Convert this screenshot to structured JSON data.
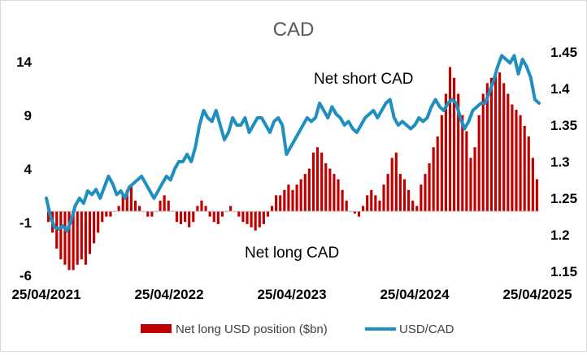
{
  "chart_data": {
    "type": "bar+line",
    "title": "CAD",
    "x_ticks": [
      "25/04/2021",
      "25/04/2022",
      "25/04/2023",
      "25/04/2024",
      "25/04/2025"
    ],
    "y_left": {
      "ticks": [
        "14",
        "9",
        "4",
        "-1",
        "-6"
      ],
      "range": [
        -6,
        14
      ]
    },
    "y_right": {
      "ticks": [
        "1.45",
        "1.4",
        "1.35",
        "1.3",
        "1.25",
        "1.2",
        "1.15"
      ],
      "range": [
        1.15,
        1.45
      ]
    },
    "annotations": [
      "Net short CAD",
      "Net long CAD"
    ],
    "legend": [
      "Net long USD position ($bn)",
      "USD/CAD"
    ],
    "colors": {
      "bars": "#c00000",
      "line": "#1f8fbf"
    },
    "series": [
      {
        "name": "Net long USD position ($bn)",
        "axis": "left",
        "type": "bar",
        "values": [
          -1,
          -2,
          -3.5,
          -4.5,
          -5,
          -5.5,
          -5.5,
          -5,
          -4.5,
          -5,
          -4,
          -3,
          -2,
          -1,
          -0.5,
          -0.5,
          0,
          0.5,
          1.5,
          2,
          2.5,
          1,
          0.5,
          0,
          -0.5,
          -0.5,
          0,
          1,
          1.5,
          1,
          0,
          -1,
          -1.2,
          -1,
          -1.5,
          -1,
          0.5,
          1,
          0.5,
          -0.5,
          -1,
          -1.2,
          -0.5,
          0,
          0.5,
          0,
          -0.5,
          -1,
          -1.2,
          -1.5,
          -1.8,
          -1.5,
          -1.2,
          -0.5,
          0.5,
          1.5,
          1.5,
          2,
          2.5,
          2,
          2.5,
          3,
          3.5,
          4,
          5.5,
          6,
          5.5,
          4.5,
          4,
          3.5,
          3,
          2,
          1,
          0,
          -0.2,
          -0.5,
          0.5,
          1.5,
          2,
          1.5,
          1,
          2.5,
          3.5,
          5,
          5.5,
          3.5,
          3,
          2,
          1,
          0.5,
          2.5,
          3.5,
          4.5,
          6,
          7,
          9,
          11,
          13.5,
          12.5,
          11,
          9,
          7.5,
          5,
          6,
          9,
          11,
          12,
          12.5,
          13,
          13,
          12,
          11,
          10,
          9.5,
          9,
          8,
          7,
          5,
          3
        ]
      },
      {
        "name": "USD/CAD",
        "axis": "right",
        "type": "line",
        "values": [
          1.25,
          1.225,
          1.21,
          1.208,
          1.212,
          1.205,
          1.22,
          1.24,
          1.25,
          1.243,
          1.26,
          1.255,
          1.262,
          1.25,
          1.265,
          1.28,
          1.27,
          1.255,
          1.26,
          1.25,
          1.265,
          1.27,
          1.275,
          1.28,
          1.27,
          1.26,
          1.25,
          1.26,
          1.27,
          1.28,
          1.275,
          1.29,
          1.3,
          1.3,
          1.31,
          1.3,
          1.32,
          1.35,
          1.37,
          1.36,
          1.355,
          1.37,
          1.35,
          1.33,
          1.34,
          1.36,
          1.35,
          1.35,
          1.36,
          1.34,
          1.35,
          1.36,
          1.36,
          1.35,
          1.34,
          1.355,
          1.36,
          1.35,
          1.31,
          1.32,
          1.33,
          1.34,
          1.35,
          1.36,
          1.355,
          1.36,
          1.38,
          1.37,
          1.36,
          1.375,
          1.365,
          1.36,
          1.35,
          1.355,
          1.345,
          1.34,
          1.35,
          1.36,
          1.365,
          1.37,
          1.36,
          1.37,
          1.38,
          1.385,
          1.36,
          1.35,
          1.355,
          1.35,
          1.345,
          1.35,
          1.36,
          1.355,
          1.36,
          1.375,
          1.385,
          1.375,
          1.37,
          1.38,
          1.385,
          1.38,
          1.36,
          1.345,
          1.355,
          1.37,
          1.375,
          1.38,
          1.38,
          1.395,
          1.41,
          1.43,
          1.445,
          1.44,
          1.435,
          1.445,
          1.42,
          1.44,
          1.43,
          1.415,
          1.385,
          1.38
        ]
      }
    ]
  }
}
